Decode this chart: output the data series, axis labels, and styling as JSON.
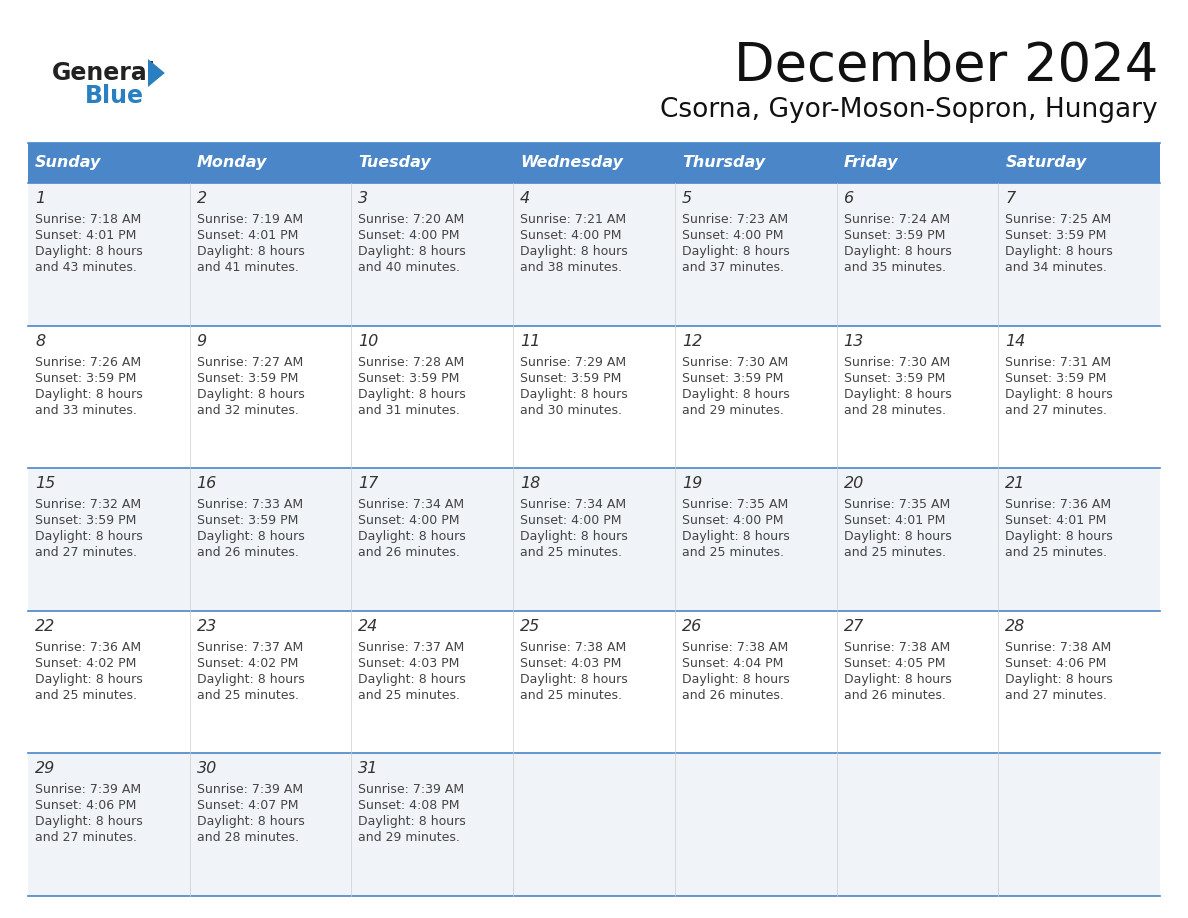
{
  "title": "December 2024",
  "subtitle": "Csorna, Gyor-Moson-Sopron, Hungary",
  "header_bg": "#4a86c8",
  "header_text": "#ffffff",
  "row_bg_odd": "#f0f4f8",
  "row_bg_even": "#ffffff",
  "border_color": "#4a86c8",
  "days_of_week": [
    "Sunday",
    "Monday",
    "Tuesday",
    "Wednesday",
    "Thursday",
    "Friday",
    "Saturday"
  ],
  "calendar_data": [
    [
      {
        "day": "1",
        "sunrise": "7:18 AM",
        "sunset": "4:01 PM",
        "daylight_line1": "Daylight: 8 hours",
        "daylight_line2": "and 43 minutes."
      },
      {
        "day": "2",
        "sunrise": "7:19 AM",
        "sunset": "4:01 PM",
        "daylight_line1": "Daylight: 8 hours",
        "daylight_line2": "and 41 minutes."
      },
      {
        "day": "3",
        "sunrise": "7:20 AM",
        "sunset": "4:00 PM",
        "daylight_line1": "Daylight: 8 hours",
        "daylight_line2": "and 40 minutes."
      },
      {
        "day": "4",
        "sunrise": "7:21 AM",
        "sunset": "4:00 PM",
        "daylight_line1": "Daylight: 8 hours",
        "daylight_line2": "and 38 minutes."
      },
      {
        "day": "5",
        "sunrise": "7:23 AM",
        "sunset": "4:00 PM",
        "daylight_line1": "Daylight: 8 hours",
        "daylight_line2": "and 37 minutes."
      },
      {
        "day": "6",
        "sunrise": "7:24 AM",
        "sunset": "3:59 PM",
        "daylight_line1": "Daylight: 8 hours",
        "daylight_line2": "and 35 minutes."
      },
      {
        "day": "7",
        "sunrise": "7:25 AM",
        "sunset": "3:59 PM",
        "daylight_line1": "Daylight: 8 hours",
        "daylight_line2": "and 34 minutes."
      }
    ],
    [
      {
        "day": "8",
        "sunrise": "7:26 AM",
        "sunset": "3:59 PM",
        "daylight_line1": "Daylight: 8 hours",
        "daylight_line2": "and 33 minutes."
      },
      {
        "day": "9",
        "sunrise": "7:27 AM",
        "sunset": "3:59 PM",
        "daylight_line1": "Daylight: 8 hours",
        "daylight_line2": "and 32 minutes."
      },
      {
        "day": "10",
        "sunrise": "7:28 AM",
        "sunset": "3:59 PM",
        "daylight_line1": "Daylight: 8 hours",
        "daylight_line2": "and 31 minutes."
      },
      {
        "day": "11",
        "sunrise": "7:29 AM",
        "sunset": "3:59 PM",
        "daylight_line1": "Daylight: 8 hours",
        "daylight_line2": "and 30 minutes."
      },
      {
        "day": "12",
        "sunrise": "7:30 AM",
        "sunset": "3:59 PM",
        "daylight_line1": "Daylight: 8 hours",
        "daylight_line2": "and 29 minutes."
      },
      {
        "day": "13",
        "sunrise": "7:30 AM",
        "sunset": "3:59 PM",
        "daylight_line1": "Daylight: 8 hours",
        "daylight_line2": "and 28 minutes."
      },
      {
        "day": "14",
        "sunrise": "7:31 AM",
        "sunset": "3:59 PM",
        "daylight_line1": "Daylight: 8 hours",
        "daylight_line2": "and 27 minutes."
      }
    ],
    [
      {
        "day": "15",
        "sunrise": "7:32 AM",
        "sunset": "3:59 PM",
        "daylight_line1": "Daylight: 8 hours",
        "daylight_line2": "and 27 minutes."
      },
      {
        "day": "16",
        "sunrise": "7:33 AM",
        "sunset": "3:59 PM",
        "daylight_line1": "Daylight: 8 hours",
        "daylight_line2": "and 26 minutes."
      },
      {
        "day": "17",
        "sunrise": "7:34 AM",
        "sunset": "4:00 PM",
        "daylight_line1": "Daylight: 8 hours",
        "daylight_line2": "and 26 minutes."
      },
      {
        "day": "18",
        "sunrise": "7:34 AM",
        "sunset": "4:00 PM",
        "daylight_line1": "Daylight: 8 hours",
        "daylight_line2": "and 25 minutes."
      },
      {
        "day": "19",
        "sunrise": "7:35 AM",
        "sunset": "4:00 PM",
        "daylight_line1": "Daylight: 8 hours",
        "daylight_line2": "and 25 minutes."
      },
      {
        "day": "20",
        "sunrise": "7:35 AM",
        "sunset": "4:01 PM",
        "daylight_line1": "Daylight: 8 hours",
        "daylight_line2": "and 25 minutes."
      },
      {
        "day": "21",
        "sunrise": "7:36 AM",
        "sunset": "4:01 PM",
        "daylight_line1": "Daylight: 8 hours",
        "daylight_line2": "and 25 minutes."
      }
    ],
    [
      {
        "day": "22",
        "sunrise": "7:36 AM",
        "sunset": "4:02 PM",
        "daylight_line1": "Daylight: 8 hours",
        "daylight_line2": "and 25 minutes."
      },
      {
        "day": "23",
        "sunrise": "7:37 AM",
        "sunset": "4:02 PM",
        "daylight_line1": "Daylight: 8 hours",
        "daylight_line2": "and 25 minutes."
      },
      {
        "day": "24",
        "sunrise": "7:37 AM",
        "sunset": "4:03 PM",
        "daylight_line1": "Daylight: 8 hours",
        "daylight_line2": "and 25 minutes."
      },
      {
        "day": "25",
        "sunrise": "7:38 AM",
        "sunset": "4:03 PM",
        "daylight_line1": "Daylight: 8 hours",
        "daylight_line2": "and 25 minutes."
      },
      {
        "day": "26",
        "sunrise": "7:38 AM",
        "sunset": "4:04 PM",
        "daylight_line1": "Daylight: 8 hours",
        "daylight_line2": "and 26 minutes."
      },
      {
        "day": "27",
        "sunrise": "7:38 AM",
        "sunset": "4:05 PM",
        "daylight_line1": "Daylight: 8 hours",
        "daylight_line2": "and 26 minutes."
      },
      {
        "day": "28",
        "sunrise": "7:38 AM",
        "sunset": "4:06 PM",
        "daylight_line1": "Daylight: 8 hours",
        "daylight_line2": "and 27 minutes."
      }
    ],
    [
      {
        "day": "29",
        "sunrise": "7:39 AM",
        "sunset": "4:06 PM",
        "daylight_line1": "Daylight: 8 hours",
        "daylight_line2": "and 27 minutes."
      },
      {
        "day": "30",
        "sunrise": "7:39 AM",
        "sunset": "4:07 PM",
        "daylight_line1": "Daylight: 8 hours",
        "daylight_line2": "and 28 minutes."
      },
      {
        "day": "31",
        "sunrise": "7:39 AM",
        "sunset": "4:08 PM",
        "daylight_line1": "Daylight: 8 hours",
        "daylight_line2": "and 29 minutes."
      },
      null,
      null,
      null,
      null
    ]
  ]
}
